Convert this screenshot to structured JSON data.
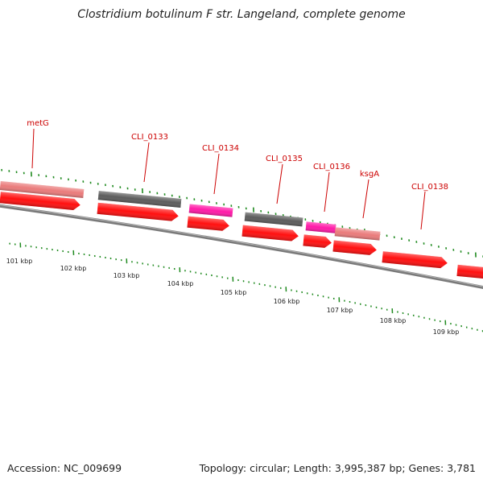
{
  "title": "Clostridium botulinum F str. Langeland, complete genome",
  "footer": {
    "accession": "Accession: NC_009699",
    "topology": "Topology: circular; Length: 3,995,387 bp; Genes: 3,781"
  },
  "colors": {
    "cds": "#ff1010",
    "gene_plain": "#ea7b7b",
    "gene_named": "#5c5c5c",
    "gene_highlight": "#ff1aa8",
    "backbone": "#7a7a7a",
    "ticks": "#1f8a1f",
    "label_text": "#cc0000"
  },
  "gene_labels": [
    {
      "name": "metG"
    },
    {
      "name": "CLI_0133"
    },
    {
      "name": "CLI_0134"
    },
    {
      "name": "CLI_0135"
    },
    {
      "name": "CLI_0136"
    },
    {
      "name": "ksgA"
    },
    {
      "name": "CLI_0138"
    }
  ],
  "kbp_labels": [
    "101 kbp",
    "102 kbp",
    "103 kbp",
    "104 kbp",
    "105 kbp",
    "106 kbp",
    "107 kbp",
    "108 kbp",
    "109 kbp"
  ]
}
